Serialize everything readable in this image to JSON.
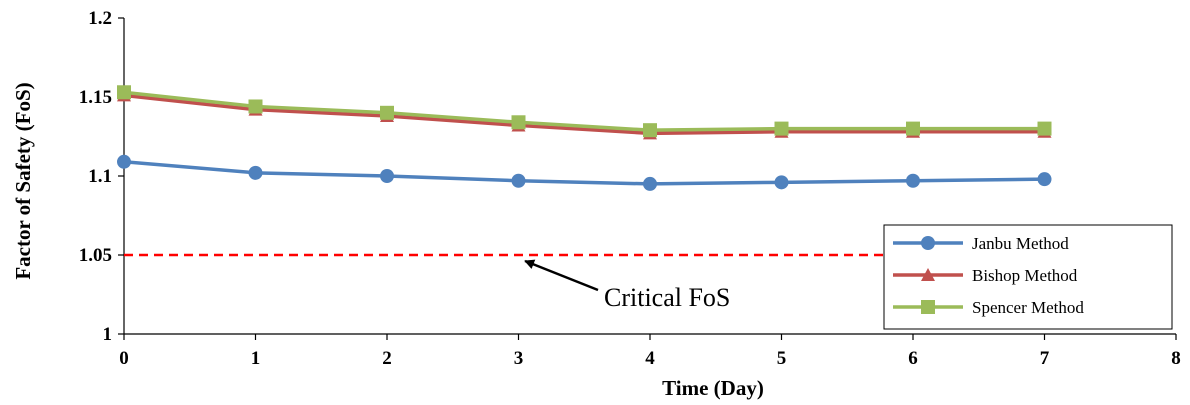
{
  "chart_data": {
    "type": "line",
    "xlabel": "Time (Day)",
    "ylabel": "Factor of Safety (FoS)",
    "xlim": [
      0,
      8
    ],
    "ylim": [
      1,
      1.2
    ],
    "x_ticks": [
      "0",
      "1",
      "2",
      "3",
      "4",
      "5",
      "6",
      "7",
      "8"
    ],
    "y_ticks": [
      "1",
      "1.05",
      "1.1",
      "1.15",
      "1.2"
    ],
    "x": [
      0,
      1,
      2,
      3,
      4,
      5,
      6,
      7
    ],
    "series": [
      {
        "name": "Janbu Method",
        "color": "#4F81BD",
        "marker": "circle",
        "values": [
          1.109,
          1.102,
          1.1,
          1.097,
          1.095,
          1.096,
          1.097,
          1.098
        ]
      },
      {
        "name": "Bishop Method",
        "color": "#C0504D",
        "marker": "triangle",
        "values": [
          1.151,
          1.142,
          1.138,
          1.132,
          1.127,
          1.128,
          1.128,
          1.128
        ]
      },
      {
        "name": "Spencer Method",
        "color": "#9BBB59",
        "marker": "square",
        "values": [
          1.153,
          1.144,
          1.14,
          1.134,
          1.129,
          1.13,
          1.13,
          1.13
        ]
      }
    ],
    "reference_line": {
      "y": 1.05,
      "color": "#FF0000",
      "style": "dashed"
    },
    "annotation": {
      "text": "Critical FoS",
      "arrow_to": {
        "x": 3.05,
        "y": 1.05
      }
    },
    "grid": false,
    "legend_position": "bottom-right"
  }
}
